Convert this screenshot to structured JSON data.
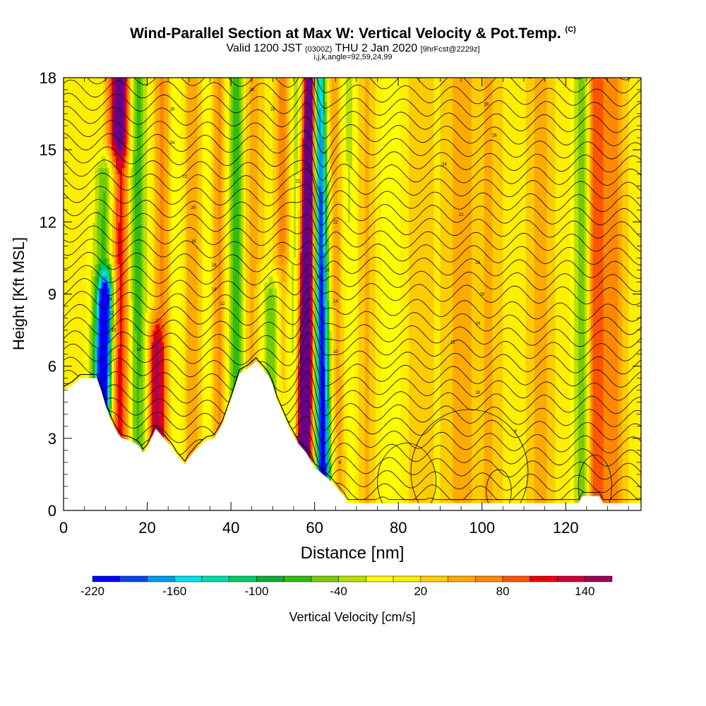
{
  "title": {
    "main": "Wind-Parallel Section at Max W: Vertical Velocity & Pot.Temp.",
    "mark": "(C)",
    "valid_prefix": "Valid 1200 JST",
    "valid_utc": "(0300Z)",
    "valid_date": "THU 2 Jan 2020",
    "forecast": "[9hrFcst@2229z]",
    "indices": "i,j,k,angle=92,59,24,99"
  },
  "chart_data": {
    "type": "heatmap",
    "xlabel": "Distance [nm]",
    "ylabel": "Height [Kft MSL]",
    "xlim": [
      0,
      138
    ],
    "ylim": [
      0,
      18
    ],
    "x_ticks": [
      "0",
      "20",
      "40",
      "60",
      "80",
      "100",
      "120"
    ],
    "x_tick_values": [
      0,
      20,
      40,
      60,
      80,
      100,
      120
    ],
    "y_ticks": [
      "0",
      "3",
      "6",
      "9",
      "12",
      "15",
      "18"
    ],
    "y_tick_values": [
      0,
      3,
      6,
      9,
      12,
      15,
      18
    ],
    "grid": false,
    "colorbar": {
      "label": "Vertical Velocity [cm/s]",
      "tick_labels": [
        "-220",
        "-160",
        "-100",
        "-40",
        "20",
        "80",
        "140"
      ],
      "tick_values": [
        -220,
        -160,
        -100,
        -40,
        20,
        80,
        140
      ],
      "bins": [
        -220,
        -200,
        -180,
        -160,
        -140,
        -120,
        -100,
        -80,
        -60,
        -40,
        -20,
        0,
        20,
        40,
        60,
        80,
        100,
        120,
        140,
        160
      ],
      "colors": [
        "#0000ff",
        "#0044ee",
        "#0099ee",
        "#00e0ee",
        "#00ddaa",
        "#00cc66",
        "#11aa33",
        "#33bb11",
        "#77cc00",
        "#bbe000",
        "#ffff00",
        "#ffee00",
        "#ffcc00",
        "#ffaa00",
        "#ff8800",
        "#ff5500",
        "#ee0000",
        "#cc0033",
        "#99005a",
        "#660088"
      ]
    },
    "terrain_kft": [
      [
        0,
        5.0
      ],
      [
        2,
        5.2
      ],
      [
        4,
        5.5
      ],
      [
        8,
        5.5
      ],
      [
        9,
        5.0
      ],
      [
        10,
        4.4
      ],
      [
        11,
        3.9
      ],
      [
        12,
        3.5
      ],
      [
        13,
        3.2
      ],
      [
        14,
        3.0
      ],
      [
        16,
        2.9
      ],
      [
        18,
        2.7
      ],
      [
        19,
        2.4
      ],
      [
        20,
        2.6
      ],
      [
        21,
        3.0
      ],
      [
        22,
        3.4
      ],
      [
        24,
        3.0
      ],
      [
        26,
        2.6
      ],
      [
        27,
        2.3
      ],
      [
        28,
        2.1
      ],
      [
        29,
        1.9
      ],
      [
        30,
        2.2
      ],
      [
        32,
        2.6
      ],
      [
        34,
        2.9
      ],
      [
        36,
        3.0
      ],
      [
        38,
        3.6
      ],
      [
        40,
        4.6
      ],
      [
        42,
        5.7
      ],
      [
        44,
        5.9
      ],
      [
        46,
        6.2
      ],
      [
        48,
        5.8
      ],
      [
        49,
        5.6
      ],
      [
        50,
        5.2
      ],
      [
        51,
        4.6
      ],
      [
        52,
        4.2
      ],
      [
        53,
        3.8
      ],
      [
        54,
        3.4
      ],
      [
        55,
        3.1
      ],
      [
        56,
        2.8
      ],
      [
        57,
        2.6
      ],
      [
        58,
        2.4
      ],
      [
        59,
        2.1
      ],
      [
        60,
        1.8
      ],
      [
        62,
        1.5
      ],
      [
        64,
        1.2
      ],
      [
        65,
        1.0
      ],
      [
        66,
        0.8
      ],
      [
        67,
        0.6
      ],
      [
        68,
        0.3
      ],
      [
        69,
        0.3
      ],
      [
        123,
        0.3
      ],
      [
        124,
        0.6
      ],
      [
        128,
        0.6
      ],
      [
        129,
        0.3
      ],
      [
        138,
        0.3
      ]
    ],
    "w_features": [
      {
        "x": 10,
        "w": 2.0,
        "tilt": 0.15,
        "v": -200,
        "ytop": 9
      },
      {
        "x": 11,
        "w": 3.5,
        "tilt": 0.12,
        "v": -120,
        "ytop": 14
      },
      {
        "x": 12.5,
        "w": 2.2,
        "tilt": 0.05,
        "v": 140,
        "ytop": 18
      },
      {
        "x": 14.5,
        "w": 2.0,
        "tilt": 0.0,
        "v": 80,
        "ytop": 18
      },
      {
        "x": 17.5,
        "w": 2.5,
        "tilt": 0.0,
        "v": -80,
        "ytop": 18
      },
      {
        "x": 22,
        "w": 1.8,
        "tilt": 0.0,
        "v": 100,
        "ytop": 7
      },
      {
        "x": 24,
        "w": 2.5,
        "tilt": 0.0,
        "v": 60,
        "ytop": 18
      },
      {
        "x": 26.5,
        "w": 2.0,
        "tilt": 0.0,
        "v": -50,
        "ytop": 18
      },
      {
        "x": 31,
        "w": 2.5,
        "tilt": 0.0,
        "v": 50,
        "ytop": 18
      },
      {
        "x": 34.5,
        "w": 2.0,
        "tilt": 0.0,
        "v": -40,
        "ytop": 18
      },
      {
        "x": 37.5,
        "w": 2.5,
        "tilt": 0.0,
        "v": 80,
        "ytop": 18
      },
      {
        "x": 41,
        "w": 3.0,
        "tilt": 0.0,
        "v": -100,
        "ytop": 18
      },
      {
        "x": 44.5,
        "w": 2.5,
        "tilt": 0.0,
        "v": 60,
        "ytop": 18
      },
      {
        "x": 50,
        "w": 3.0,
        "tilt": 0.0,
        "v": -70,
        "ytop": 9
      },
      {
        "x": 52.5,
        "w": 2.0,
        "tilt": 0.0,
        "v": 60,
        "ytop": 18
      },
      {
        "x": 55,
        "w": 1.8,
        "tilt": 0.1,
        "v": -60,
        "ytop": 18
      },
      {
        "x": 58,
        "w": 1.5,
        "tilt": 0.1,
        "v": 170,
        "ytop": 18
      },
      {
        "x": 58.7,
        "w": 2.8,
        "tilt": 0.1,
        "v": 90,
        "ytop": 18
      },
      {
        "x": 61.5,
        "w": 1.5,
        "tilt": -0.05,
        "v": -180,
        "ytop": 18
      },
      {
        "x": 62.3,
        "w": 2.8,
        "tilt": -0.05,
        "v": -90,
        "ytop": 18
      },
      {
        "x": 65,
        "w": 2.5,
        "tilt": -0.1,
        "v": 90,
        "ytop": 18
      },
      {
        "x": 68,
        "w": 3.0,
        "tilt": 0.0,
        "v": -50,
        "ytop": 18
      },
      {
        "x": 72,
        "w": 3.0,
        "tilt": 0.0,
        "v": 40,
        "ytop": 18
      },
      {
        "x": 78,
        "w": 3.0,
        "tilt": 0.0,
        "v": -30,
        "ytop": 18
      },
      {
        "x": 85,
        "w": 3.0,
        "tilt": 0.0,
        "v": 30,
        "ytop": 18
      },
      {
        "x": 95,
        "w": 4.0,
        "tilt": 0.0,
        "v": 40,
        "ytop": 18
      },
      {
        "x": 102,
        "w": 3.0,
        "tilt": 0.0,
        "v": 30,
        "ytop": 18
      },
      {
        "x": 114,
        "w": 3.0,
        "tilt": 0.0,
        "v": 40,
        "ytop": 18
      },
      {
        "x": 124,
        "w": 2.0,
        "tilt": 0.0,
        "v": -70,
        "ytop": 18
      },
      {
        "x": 127,
        "w": 2.0,
        "tilt": 0.0,
        "v": 80,
        "ytop": 18
      },
      {
        "x": 131,
        "w": 3.0,
        "tilt": 0.0,
        "v": 60,
        "ytop": 18
      }
    ],
    "theta_contours": {
      "count": 34,
      "label_points": [
        {
          "x": 11,
          "y": 8.8,
          "text": "14"
        },
        {
          "x": 11.5,
          "y": 8.2,
          "text": "12"
        },
        {
          "x": 12,
          "y": 7.5,
          "text": "10"
        },
        {
          "x": 18,
          "y": 6.7,
          "text": "10"
        },
        {
          "x": 26,
          "y": 16.7,
          "text": "26"
        },
        {
          "x": 26,
          "y": 15.3,
          "text": "24"
        },
        {
          "x": 29,
          "y": 13.9,
          "text": "22"
        },
        {
          "x": 31,
          "y": 12.6,
          "text": "20"
        },
        {
          "x": 31,
          "y": 11.2,
          "text": "18"
        },
        {
          "x": 36,
          "y": 10.2,
          "text": "16"
        },
        {
          "x": 36,
          "y": 9.2,
          "text": "14"
        },
        {
          "x": 38,
          "y": 8.6,
          "text": "12"
        },
        {
          "x": 45,
          "y": 17.5,
          "text": "28"
        },
        {
          "x": 50,
          "y": 16.7,
          "text": "26"
        },
        {
          "x": 59,
          "y": 15.5,
          "text": "24"
        },
        {
          "x": 56,
          "y": 13.7,
          "text": "22"
        },
        {
          "x": 59,
          "y": 11.7,
          "text": "20"
        },
        {
          "x": 61,
          "y": 9.7,
          "text": "18"
        },
        {
          "x": 63,
          "y": 10.0,
          "text": "16"
        },
        {
          "x": 65,
          "y": 8.7,
          "text": "14"
        },
        {
          "x": 65,
          "y": 12.0,
          "text": "22"
        },
        {
          "x": 65,
          "y": 6.6,
          "text": "10"
        },
        {
          "x": 66,
          "y": 2.0,
          "text": "8"
        },
        {
          "x": 101,
          "y": 16.9,
          "text": "28"
        },
        {
          "x": 103,
          "y": 15.6,
          "text": "26"
        },
        {
          "x": 91,
          "y": 14.4,
          "text": "24"
        },
        {
          "x": 95,
          "y": 12.3,
          "text": "22"
        },
        {
          "x": 99,
          "y": 10.3,
          "text": "20"
        },
        {
          "x": 100,
          "y": 9.0,
          "text": "18"
        },
        {
          "x": 99,
          "y": 7.8,
          "text": "14"
        },
        {
          "x": 93,
          "y": 7.0,
          "text": "12"
        },
        {
          "x": 99,
          "y": 4.9,
          "text": "10"
        },
        {
          "x": 108,
          "y": 3.3,
          "text": "8"
        }
      ]
    }
  }
}
